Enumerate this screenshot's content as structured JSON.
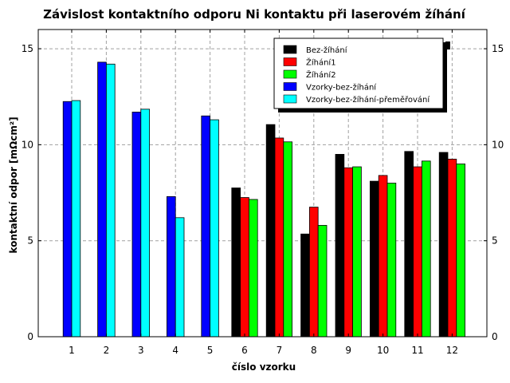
{
  "chart_data": {
    "type": "bar",
    "title": "Závislost kontaktního odporu Ni kontaktu při laserovém žíhání",
    "xlabel": "číslo vzorku",
    "ylabel": "kontaktní odpor [mΩcm²]",
    "categories": [
      "1",
      "2",
      "3",
      "4",
      "5",
      "6",
      "7",
      "8",
      "9",
      "10",
      "11",
      "12"
    ],
    "ylim": [
      0,
      16
    ],
    "yticks": [
      "0",
      "5",
      "10",
      "15"
    ],
    "yticks_right": true,
    "grid": true,
    "legend_position": "top-right",
    "series": [
      {
        "name": "Bez-žíhání",
        "color": "#000000",
        "values": [
          null,
          null,
          null,
          null,
          null,
          7.75,
          11.05,
          5.35,
          9.5,
          8.1,
          9.65,
          9.6
        ]
      },
      {
        "name": "Žíhání1",
        "color": "#ff0000",
        "values": [
          null,
          null,
          null,
          null,
          null,
          7.25,
          10.35,
          6.75,
          8.8,
          8.4,
          8.85,
          9.25
        ]
      },
      {
        "name": "Žíhání2",
        "color": "#00ff00",
        "values": [
          null,
          null,
          null,
          null,
          null,
          7.15,
          10.15,
          5.8,
          8.85,
          8.0,
          9.15,
          9.0
        ]
      },
      {
        "name": "Vzorky-bez-žíhání",
        "color": "#0000ff",
        "values": [
          12.25,
          14.3,
          11.7,
          7.3,
          11.5,
          null,
          null,
          null,
          null,
          null,
          null,
          null
        ]
      },
      {
        "name": "Vzorky-bez-žíhání-přeměřování",
        "color": "#00ffff",
        "values": [
          12.3,
          14.2,
          11.85,
          6.2,
          11.3,
          null,
          null,
          null,
          null,
          null,
          null,
          null
        ]
      }
    ],
    "overflow_marker": {
      "category": "12",
      "color": "#000000"
    }
  }
}
